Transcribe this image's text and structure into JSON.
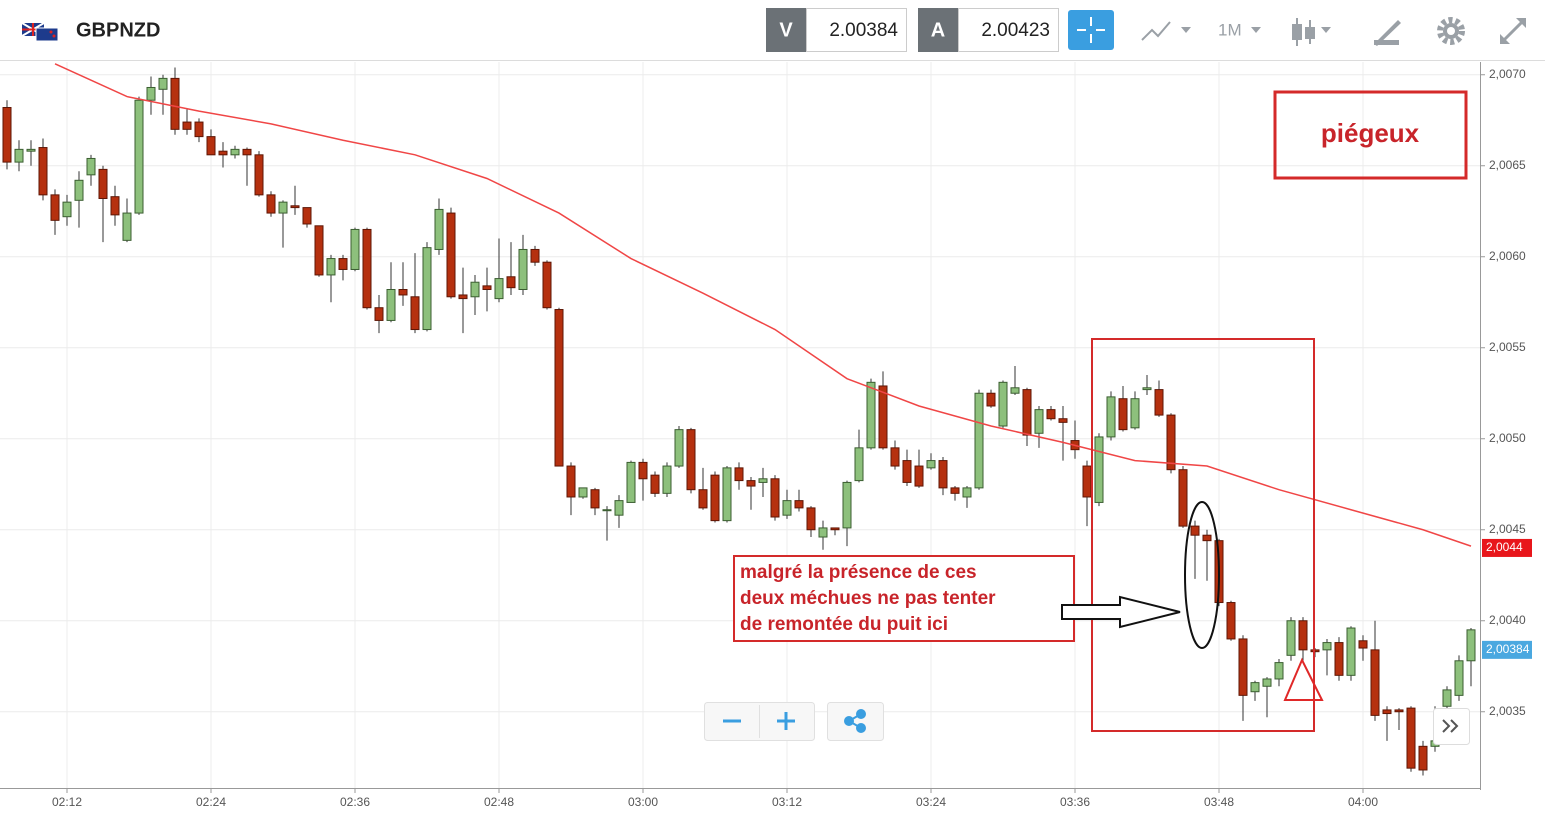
{
  "header": {
    "symbol": "GBPNZD",
    "sell_label": "V",
    "sell_price": "2.00384",
    "buy_label": "A",
    "buy_price": "2.00423",
    "timeframe": "1M"
  },
  "chart_data": {
    "type": "candlestick",
    "x": [
      "02:07",
      "02:08",
      "02:09",
      "02:10",
      "02:11",
      "02:12",
      "02:13",
      "02:14",
      "02:15",
      "02:16",
      "02:17",
      "02:18",
      "02:19",
      "02:20",
      "02:21",
      "02:22",
      "02:23",
      "02:24",
      "02:25",
      "02:26",
      "02:27",
      "02:28",
      "02:29",
      "02:30",
      "02:31",
      "02:32",
      "02:33",
      "02:34",
      "02:35",
      "02:36",
      "02:37",
      "02:38",
      "02:39",
      "02:40",
      "02:41",
      "02:42",
      "02:43",
      "02:44",
      "02:45",
      "02:46",
      "02:47",
      "02:48",
      "02:49",
      "02:50",
      "02:51",
      "02:52",
      "02:53",
      "02:54",
      "02:55",
      "02:56",
      "02:57",
      "02:58",
      "02:59",
      "03:00",
      "03:01",
      "03:02",
      "03:03",
      "03:04",
      "03:05",
      "03:06",
      "03:07",
      "03:08",
      "03:09",
      "03:10",
      "03:11",
      "03:12",
      "03:13",
      "03:14",
      "03:15",
      "03:16",
      "03:17",
      "03:18",
      "03:19",
      "03:20",
      "03:21",
      "03:22",
      "03:23",
      "03:24",
      "03:25",
      "03:26",
      "03:27",
      "03:28",
      "03:29",
      "03:30",
      "03:31",
      "03:32",
      "03:33",
      "03:34",
      "03:35",
      "03:36",
      "03:37",
      "03:38",
      "03:39",
      "03:40",
      "03:41",
      "03:42",
      "03:43",
      "03:44",
      "03:45",
      "03:46",
      "03:47",
      "03:48",
      "03:49",
      "03:50",
      "03:51",
      "03:52",
      "03:53",
      "03:54",
      "03:55",
      "03:56",
      "03:57",
      "03:58",
      "03:59",
      "04:00",
      "04:01",
      "04:02",
      "04:03",
      "04:04",
      "04:05",
      "04:06",
      "04:07",
      "04:08",
      "04:09"
    ],
    "open": [
      2.00682,
      2.00652,
      2.00658,
      2.0066,
      2.00634,
      2.00622,
      2.00631,
      2.00645,
      2.00648,
      2.00633,
      2.00609,
      2.00624,
      2.00686,
      2.00692,
      2.00698,
      2.00674,
      2.00674,
      2.00666,
      2.00658,
      2.00656,
      2.00659,
      2.00656,
      2.00634,
      2.00624,
      2.00628,
      2.00627,
      2.00617,
      2.0059,
      2.00599,
      2.00593,
      2.00615,
      2.00572,
      2.00565,
      2.00582,
      2.00578,
      2.0056,
      2.00604,
      2.00624,
      2.00579,
      2.00578,
      2.00584,
      2.00577,
      2.00589,
      2.00582,
      2.00604,
      2.00597,
      2.00571,
      2.00485,
      2.00468,
      2.00472,
      2.00461,
      2.00458,
      2.00465,
      2.00487,
      2.0048,
      2.0047,
      2.00485,
      2.00505,
      2.00472,
      2.0048,
      2.00455,
      2.00484,
      2.00477,
      2.00476,
      2.00478,
      2.00458,
      2.00466,
      2.00462,
      2.00446,
      2.00451,
      2.00451,
      2.00477,
      2.00495,
      2.00529,
      2.00495,
      2.00488,
      2.00485,
      2.00484,
      2.00488,
      2.00473,
      2.00468,
      2.00473,
      2.00525,
      2.00507,
      2.00525,
      2.00527,
      2.00503,
      2.00516,
      2.00511,
      2.00499,
      2.00485,
      2.00465,
      2.00501,
      2.00522,
      2.00506,
      2.00527,
      2.00527,
      2.00513,
      2.00483,
      2.00452,
      2.00447,
      2.00444,
      2.0041,
      2.0039,
      2.00361,
      2.00364,
      2.00368,
      2.00381,
      2.004,
      2.00384,
      2.00384,
      2.00388,
      2.0037,
      2.00389,
      2.00384,
      2.00351,
      2.00351,
      2.00352,
      2.00331,
      2.00331,
      2.00353,
      2.00359,
      2.00378
    ],
    "high": [
      2.00686,
      2.00664,
      2.00664,
      2.00665,
      2.00637,
      2.00634,
      2.00647,
      2.00656,
      2.0065,
      2.00639,
      2.00632,
      2.00688,
      2.00699,
      2.007,
      2.00704,
      2.00681,
      2.00676,
      2.0067,
      2.00663,
      2.00661,
      2.0066,
      2.00658,
      2.00636,
      2.00631,
      2.00639,
      2.00627,
      2.00617,
      2.00601,
      2.00601,
      2.00616,
      2.00616,
      2.00579,
      2.00597,
      2.00597,
      2.00602,
      2.00608,
      2.00632,
      2.00627,
      2.00594,
      2.0059,
      2.00594,
      2.0061,
      2.00608,
      2.00612,
      2.00606,
      2.00598,
      2.00572,
      2.00487,
      2.00473,
      2.00473,
      2.00463,
      2.00469,
      2.00488,
      2.00489,
      2.00482,
      2.00487,
      2.00507,
      2.00506,
      2.00484,
      2.00482,
      2.00485,
      2.00487,
      2.00479,
      2.00484,
      2.0048,
      2.00472,
      2.00472,
      2.00463,
      2.00455,
      2.00451,
      2.00477,
      2.00505,
      2.00533,
      2.00537,
      2.00499,
      2.00494,
      2.00494,
      2.00492,
      2.0049,
      2.00474,
      2.00474,
      2.00527,
      2.00527,
      2.00532,
      2.0054,
      2.00528,
      2.00518,
      2.00518,
      2.00518,
      2.0051,
      2.00488,
      2.00503,
      2.00526,
      2.00529,
      2.00526,
      2.00535,
      2.00532,
      2.00514,
      2.00485,
      2.00455,
      2.0045,
      2.00445,
      2.00411,
      2.00392,
      2.00367,
      2.00369,
      2.00379,
      2.00402,
      2.00402,
      2.00385,
      2.0039,
      2.00391,
      2.00397,
      2.00392,
      2.004,
      2.00353,
      2.00352,
      2.00353,
      2.00334,
      2.00353,
      2.00364,
      2.00381,
      2.00396
    ],
    "low": [
      2.00648,
      2.00647,
      2.0065,
      2.00631,
      2.00612,
      2.00617,
      2.00616,
      2.00639,
      2.00608,
      2.00617,
      2.00608,
      2.00623,
      2.00678,
      2.00678,
      2.00667,
      2.00667,
      2.00663,
      2.00656,
      2.00649,
      2.00654,
      2.00639,
      2.00633,
      2.00622,
      2.00605,
      2.00623,
      2.00616,
      2.00589,
      2.00575,
      2.00587,
      2.00592,
      2.00571,
      2.00558,
      2.00564,
      2.00573,
      2.00558,
      2.00559,
      2.00601,
      2.00577,
      2.00558,
      2.00568,
      2.0057,
      2.00575,
      2.00579,
      2.00579,
      2.00595,
      2.00571,
      2.00485,
      2.00458,
      2.00467,
      2.00458,
      2.00444,
      2.00451,
      2.00465,
      2.00466,
      2.00468,
      2.00468,
      2.00484,
      2.0047,
      2.00461,
      2.00454,
      2.00454,
      2.00472,
      2.00461,
      2.00468,
      2.00455,
      2.00456,
      2.0046,
      2.00446,
      2.00439,
      2.00447,
      2.00441,
      2.00476,
      2.00494,
      2.00494,
      2.00483,
      2.00474,
      2.00473,
      2.00483,
      2.00469,
      2.00466,
      2.00462,
      2.00472,
      2.00517,
      2.00506,
      2.00524,
      2.00496,
      2.00495,
      2.0051,
      2.00488,
      2.00489,
      2.00452,
      2.00463,
      2.00499,
      2.00504,
      2.00505,
      2.00524,
      2.00512,
      2.00481,
      2.00451,
      2.00423,
      2.00422,
      2.00408,
      2.00389,
      2.00345,
      2.00356,
      2.00347,
      2.00364,
      2.00378,
      2.00378,
      2.0038,
      2.0037,
      2.00367,
      2.00367,
      2.00378,
      2.00345,
      2.00334,
      2.0034,
      2.00317,
      2.00315,
      2.00328,
      2.0035,
      2.00356,
      2.00364
    ],
    "close": [
      2.00652,
      2.00659,
      2.00659,
      2.00634,
      2.0062,
      2.0063,
      2.00642,
      2.00654,
      2.00632,
      2.00623,
      2.00624,
      2.00686,
      2.00693,
      2.00698,
      2.0067,
      2.0067,
      2.00666,
      2.00656,
      2.00656,
      2.00659,
      2.00656,
      2.00634,
      2.00624,
      2.0063,
      2.00627,
      2.00618,
      2.0059,
      2.00599,
      2.00593,
      2.00615,
      2.00572,
      2.00565,
      2.00582,
      2.00579,
      2.0056,
      2.00605,
      2.00626,
      2.00578,
      2.00577,
      2.00586,
      2.00582,
      2.00588,
      2.00583,
      2.00604,
      2.00597,
      2.00572,
      2.00485,
      2.00468,
      2.00473,
      2.00462,
      2.00461,
      2.00466,
      2.00487,
      2.00478,
      2.0047,
      2.00485,
      2.00505,
      2.00472,
      2.00462,
      2.00455,
      2.00484,
      2.00477,
      2.00474,
      2.00478,
      2.00457,
      2.00466,
      2.00462,
      2.0045,
      2.00451,
      2.0045,
      2.00476,
      2.00495,
      2.00531,
      2.00495,
      2.00485,
      2.00476,
      2.00474,
      2.00488,
      2.00473,
      2.0047,
      2.00473,
      2.00525,
      2.00518,
      2.00531,
      2.00528,
      2.00502,
      2.00516,
      2.00511,
      2.00509,
      2.00494,
      2.00468,
      2.00501,
      2.00523,
      2.00505,
      2.00522,
      2.00528,
      2.00513,
      2.00483,
      2.00452,
      2.00447,
      2.00444,
      2.0041,
      2.0039,
      2.00359,
      2.00366,
      2.00368,
      2.00377,
      2.004,
      2.00384,
      2.00383,
      2.00388,
      2.0037,
      2.00396,
      2.00385,
      2.00348,
      2.00349,
      2.0035,
      2.00319,
      2.00318,
      2.00334,
      2.00362,
      2.00378,
      2.00395
    ],
    "up_color": "#8dc07c",
    "down_color": "#b5300f",
    "ma": {
      "color": "#f04646",
      "x": [
        "02:11",
        "02:17",
        "02:23",
        "02:29",
        "02:35",
        "02:41",
        "02:47",
        "02:53",
        "02:59",
        "03:05",
        "03:11",
        "03:17",
        "03:23",
        "03:29",
        "03:35",
        "03:41",
        "03:47",
        "03:53",
        "03:59",
        "04:05",
        "04:09"
      ],
      "values": [
        2.00706,
        2.00688,
        2.0068,
        2.00673,
        2.00664,
        2.00656,
        2.00643,
        2.00624,
        2.00599,
        2.0058,
        2.0056,
        2.00533,
        2.00518,
        2.00507,
        2.00498,
        2.00488,
        2.00485,
        2.00472,
        2.00461,
        2.0045,
        2.00441
      ]
    },
    "ma_label": {
      "value": 2.0044,
      "label": "2,0044"
    },
    "price_label": {
      "value": 2.00384,
      "label": "2,00384"
    },
    "ylim": [
      2.00307,
      2.00707
    ],
    "yticks": [
      {
        "value": 2.0035,
        "label": "2,0035"
      },
      {
        "value": 2.004,
        "label": "2,0040"
      },
      {
        "value": 2.0045,
        "label": "2,0045"
      },
      {
        "value": 2.005,
        "label": "2,0050"
      },
      {
        "value": 2.0055,
        "label": "2,0055"
      },
      {
        "value": 2.006,
        "label": "2,0060"
      },
      {
        "value": 2.0065,
        "label": "2,0065"
      },
      {
        "value": 2.007,
        "label": "2,0070"
      }
    ],
    "xticks": [
      "02:12",
      "02:24",
      "02:36",
      "02:48",
      "03:00",
      "03:12",
      "03:24",
      "03:36",
      "03:48",
      "04:00"
    ],
    "grid": true,
    "annotations": {
      "box_label": "piégeux",
      "note": [
        "malgré la présence de ces",
        "deux méchues ne pas tenter",
        "de remontée du puit ici"
      ]
    }
  }
}
